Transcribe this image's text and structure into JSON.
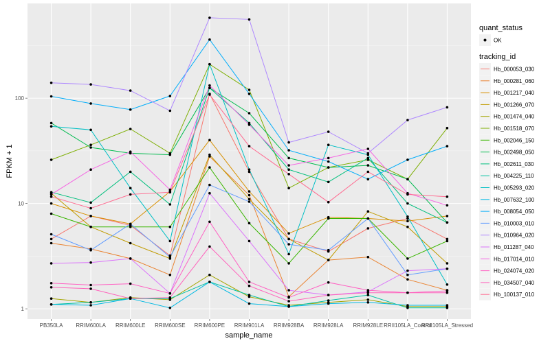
{
  "chart_data": {
    "type": "line",
    "title": "",
    "xlabel": "sample_name",
    "ylabel": "FPKM + 1",
    "yscale": "log10",
    "ylim": [
      0.8,
      794
    ],
    "yticks": [
      {
        "value": 1,
        "label": "1"
      },
      {
        "value": 10,
        "label": "10"
      },
      {
        "value": 100,
        "label": "100"
      }
    ],
    "grid": true,
    "legend_position": "right",
    "categories": [
      "PB350LA",
      "RRIM600LA",
      "RRIM600LE",
      "RRIM600SE",
      "RRIM600PE",
      "RRIM901LA",
      "RRIM928BA",
      "RRIM928LA",
      "RRIM928LE",
      "RRII105LA_Control",
      "RRII105LA_Stressed"
    ],
    "legend_shape": {
      "title": "quant_status",
      "entries": [
        "OK"
      ]
    },
    "legend_color_title": "tracking_id",
    "series": [
      {
        "name": "Hb_000053_030",
        "color": "#F8766D",
        "values": [
          4.6,
          7.6,
          6.2,
          3.2,
          110,
          20.0,
          4.6,
          3.5,
          5.8,
          7.2,
          4.6
        ]
      },
      {
        "name": "Hb_000281_060",
        "color": "#EA8331",
        "values": [
          4.2,
          3.7,
          3.0,
          2.1,
          28,
          12.0,
          1.3,
          2.9,
          3.1,
          1.9,
          1.5
        ]
      },
      {
        "name": "Hb_001217_040",
        "color": "#D89000",
        "values": [
          10.0,
          7.6,
          6.4,
          13.0,
          40,
          13.0,
          5.2,
          7.4,
          7.2,
          6.8,
          7.6
        ]
      },
      {
        "name": "Hb_001266_070",
        "color": "#C09B00",
        "values": [
          12.5,
          6.0,
          4.2,
          3.0,
          29,
          11.0,
          4.6,
          2.9,
          8.4,
          6.0,
          2.7
        ]
      },
      {
        "name": "Hb_001474_040",
        "color": "#A3A500",
        "values": [
          1.25,
          1.15,
          1.28,
          1.22,
          2.1,
          1.3,
          1.08,
          1.15,
          1.22,
          1.05,
          1.05
        ]
      },
      {
        "name": "Hb_001518_070",
        "color": "#7CAE00",
        "values": [
          26,
          36,
          51,
          30,
          210,
          120,
          14,
          22,
          26,
          17,
          52
        ]
      },
      {
        "name": "Hb_002046_150",
        "color": "#39B600",
        "values": [
          8.0,
          6.0,
          6.0,
          6.0,
          22,
          6.5,
          2.7,
          7.2,
          7.2,
          3.0,
          4.4
        ]
      },
      {
        "name": "Hb_002498_050",
        "color": "#00BB4E",
        "values": [
          58,
          34,
          30,
          29,
          125,
          72,
          27,
          22,
          23,
          17,
          6.6
        ]
      },
      {
        "name": "Hb_002611_030",
        "color": "#00BF7D",
        "values": [
          12.8,
          10.2,
          20,
          9.8,
          125,
          58,
          21,
          16,
          27,
          10,
          6.6
        ]
      },
      {
        "name": "Hb_004225_110",
        "color": "#00C1A3",
        "values": [
          1.1,
          1.15,
          1.25,
          1.25,
          1.8,
          1.35,
          1.05,
          1.2,
          1.35,
          1.02,
          1.02
        ]
      },
      {
        "name": "Hb_005293_020",
        "color": "#00BFC4",
        "values": [
          54,
          50,
          14,
          4.4,
          210,
          21,
          3.3,
          36,
          29,
          7.5,
          1.7
        ]
      },
      {
        "name": "Hb_007632_100",
        "color": "#00B9E3",
        "values": [
          1.1,
          1.08,
          1.25,
          1.02,
          1.8,
          1.12,
          1.05,
          1.12,
          1.15,
          1.08,
          1.08
        ]
      },
      {
        "name": "Hb_008054_050",
        "color": "#00ADFA",
        "values": [
          104,
          89,
          78,
          105,
          360,
          110,
          32,
          25,
          17,
          26,
          35
        ]
      },
      {
        "name": "Hb_010003_010",
        "color": "#619CFF",
        "values": [
          5.1,
          3.6,
          6.4,
          3.1,
          15,
          10.4,
          4.1,
          3.6,
          7.2,
          2.1,
          2.4
        ]
      },
      {
        "name": "Hb_010964_020",
        "color": "#AE87FF",
        "values": [
          140,
          135,
          118,
          76,
          580,
          560,
          38,
          48,
          30,
          62,
          82
        ]
      },
      {
        "name": "Hb_011287_040",
        "color": "#DB72FB",
        "values": [
          2.7,
          2.75,
          3.0,
          1.4,
          12.5,
          4.4,
          1.5,
          1.35,
          1.45,
          2.3,
          2.4
        ]
      },
      {
        "name": "Hb_017014_010",
        "color": "#F564E3",
        "values": [
          12.2,
          21,
          31,
          13.5,
          132,
          56,
          23,
          27,
          33,
          12.5,
          9.6
        ]
      },
      {
        "name": "Hb_024074_020",
        "color": "#FF61C3",
        "values": [
          1.75,
          1.68,
          1.73,
          1.4,
          6.7,
          1.8,
          1.28,
          1.78,
          1.5,
          1.42,
          1.48
        ]
      },
      {
        "name": "Hb_034507_040",
        "color": "#FF62BC",
        "values": [
          1.6,
          1.55,
          1.25,
          1.28,
          3.9,
          1.65,
          1.18,
          1.35,
          1.42,
          1.42,
          1.42
        ]
      },
      {
        "name": "Hb_100137_010",
        "color": "#FF6C91",
        "values": [
          11.6,
          9.0,
          12.2,
          12.8,
          108,
          35,
          19,
          10.3,
          20,
          12.2,
          11.6
        ]
      }
    ]
  }
}
